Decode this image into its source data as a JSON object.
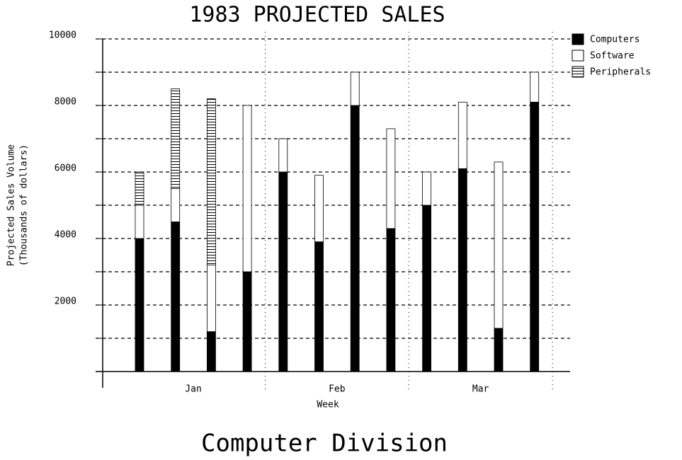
{
  "chart_data": {
    "type": "stacked_bar",
    "title": "1983 PROJECTED SALES",
    "subtitle": "Computer Division",
    "y_label": [
      "Projected Sales Volume",
      "(Thousands of dollars)"
    ],
    "x_label": "Week",
    "categories": [
      null,
      null,
      null,
      null,
      null,
      null,
      null,
      null,
      null,
      null,
      null,
      null
    ],
    "category_groups": [
      "Jan",
      "Feb",
      "Mar"
    ],
    "series": [
      {
        "name": "Computers",
        "color": "#000000",
        "values": [
          4000,
          4500,
          1200,
          3000,
          6000,
          3900,
          8000,
          4300,
          5000,
          6100,
          1300,
          8100
        ]
      },
      {
        "name": "Software",
        "color": "#ffffff",
        "values": [
          1000,
          1000,
          2000,
          5000,
          1000,
          2000,
          1000,
          3000,
          1000,
          2000,
          5000,
          900
        ]
      },
      {
        "name": "Peripherals",
        "color": "#ffffff",
        "pattern": "horizontal-lines",
        "values": [
          1000,
          3000,
          5000,
          0,
          0,
          0,
          0,
          0,
          0,
          0,
          0,
          0
        ]
      }
    ],
    "ylim": [
      0,
      10000
    ],
    "yticks": [
      2000,
      4000,
      6000,
      8000,
      10000
    ],
    "minor_yticks": [
      1000,
      3000,
      5000,
      7000,
      9000
    ],
    "grid": true,
    "legend": "top-right"
  }
}
